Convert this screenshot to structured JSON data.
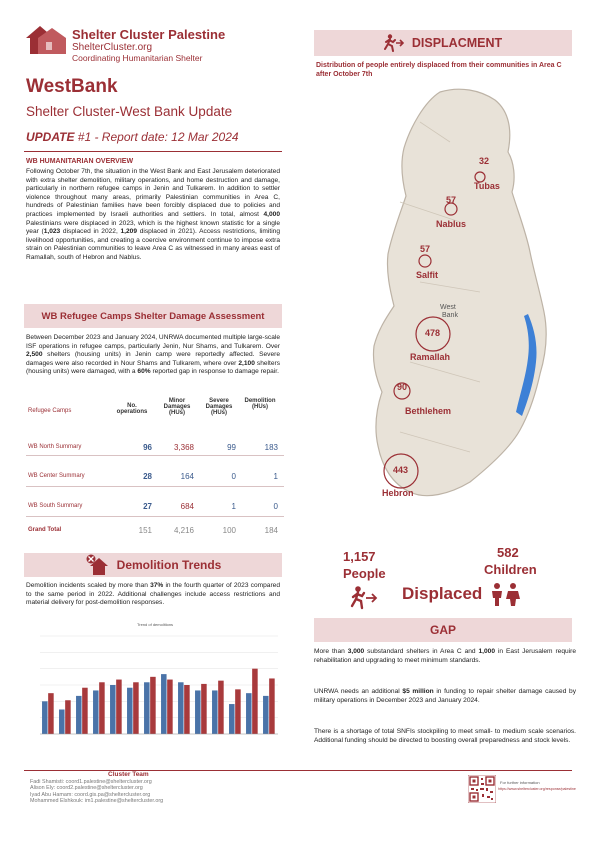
{
  "brand": {
    "name": "Shelter Cluster Palestine",
    "site": "ShelterCluster.org",
    "tagline": "Coordinating Humanitarian Shelter"
  },
  "header": {
    "region": "WestBank",
    "subtitle": "Shelter Cluster-West Bank Update",
    "update_label": "UPDATE",
    "update_meta": "#1 - Report date: 12 Mar 2024"
  },
  "overview": {
    "heading": "WB HUMANITARIAN OVERVIEW",
    "text_a": "Following October 7th, the situation in the West Bank and East Jerusalem deteriorated with extra shelter demolition, military operations, and home destruction and damage, particularly in northern refugee camps in Jenin and Tulkarem. In addition to settler violence throughout many areas, primarily Palestinian communities in Area C, hundreds of Palestinian families have been forcibly displaced due to policies and practices implemented by Israeli authorities and settlers. In total, almost ",
    "num_a": "4,000",
    "text_b": " Palestinians were displaced in 2023, which is the highest known statistic for a single year (",
    "num_b": "1,023",
    "text_c": " displaced in 2022, ",
    "num_c": "1,209",
    "text_d": " displaced in 2021). Access restrictions, limiting livelihood opportunities, and creating a coercive environment continue to impose extra strain on Palestinian communities to leave Area C as witnessed in many areas east of Ramallah, south of Hebron and Nablus."
  },
  "camps": {
    "heading": "WB Refugee Camps Shelter Damage Assessment",
    "text_a": "Between December 2023 and January 2024, UNRWA documented multiple large-scale ISF operations in refugee camps, particularly Jenin, Nur Shams, and Tulkarem. Over ",
    "num_a": "2,500",
    "text_b": " shelters (housing units) in Jenin camp were reportedly affected. Severe damages were also recorded in Nour Shams and Tulkarem, where over ",
    "num_b": "2,100",
    "text_c": " shelters (housing units) were damaged, with a ",
    "num_c": "60%",
    "text_d": " reported gap in response to damage repair.",
    "columns": [
      "Refugee Camps",
      "No. operations",
      "Minor Damages (HUs)",
      "Severe Damages (HUs)",
      "Demolition (HUs)"
    ],
    "rows": [
      {
        "name": "WB North Summary",
        "ops": "96",
        "minor": "3,368",
        "severe": "99",
        "demo": "183"
      },
      {
        "name": "WB Center Summary",
        "ops": "28",
        "minor": "164",
        "severe": "0",
        "demo": "1"
      },
      {
        "name": "WB South Summary",
        "ops": "27",
        "minor": "684",
        "severe": "1",
        "demo": "0"
      },
      {
        "name": "Grand Total",
        "ops": "151",
        "minor": "4,216",
        "severe": "100",
        "demo": "184"
      }
    ]
  },
  "demolition": {
    "heading": "Demolition Trends",
    "text_a": "Demolition incidents scaled by more than ",
    "num_a": "37%",
    "text_b": " in the fourth quarter of 2023 compared to the same period in 2022. Additional challenges include access restrictions and material delivery for post-demolition responses."
  },
  "chart_data": {
    "type": "bar",
    "title": "Trend of demolitions",
    "series": [
      {
        "color": "#4a73a8",
        "values": [
          60,
          45,
          70,
          80,
          90,
          85,
          95,
          110,
          95,
          80,
          80,
          55,
          75,
          70
        ]
      },
      {
        "color": "#a83a3c",
        "values": [
          75,
          62,
          85,
          95,
          100,
          95,
          105,
          100,
          90,
          92,
          98,
          82,
          120,
          102
        ]
      }
    ],
    "ylim": [
      0,
      180
    ]
  },
  "displacement": {
    "heading": "DISPLACMENT",
    "caption": "Distribution of people entirely displaced from their communities in Area C after October 7th",
    "points": [
      {
        "name": "Tubas",
        "value": "32"
      },
      {
        "name": "Nablus",
        "value": "57"
      },
      {
        "name": "Salfit",
        "value": "57"
      },
      {
        "name": "Ramallah",
        "value": "478"
      },
      {
        "name": "Bethlehem",
        "value": "90"
      },
      {
        "name": "Hebron",
        "value": "443"
      }
    ],
    "map_label_1": "West",
    "map_label_2": "Bank",
    "people_num": "1,157",
    "people_label": "People",
    "displaced_label": "Displaced",
    "children_num": "582",
    "children_label": "Children"
  },
  "gap": {
    "heading": "GAP",
    "p1_a": "More than ",
    "p1_n1": "3,000",
    "p1_b": " substandard shelters in Area C and ",
    "p1_n2": "1,000",
    "p1_c": " in East Jerusalem require rehabilitation and upgrading to meet minimum standards.",
    "p2_a": "UNRWA needs an additional ",
    "p2_n": "$5 million",
    "p2_b": " in funding to repair shelter damage caused by military operations in December 2023 and January 2024.",
    "p3": "There is a shortage of total SNFIs stockpiling to meet small- to medium scale scenarios. Additional funding should be directed to boosting overall preparedness and stock levels."
  },
  "footer": {
    "team_label": "Cluster Team",
    "contacts": [
      "Fadi Shamisti: coord1.palestine@sheltercluster.org",
      "Alison Ely: coord2.palestine@sheltercluster.org",
      "Iyad Abu Hamam: coord.gis.pa@sheltercluster.org",
      "Mohammed Elshkouk: im1.palestine@sheltercluster.org"
    ],
    "link_label": "For further information",
    "link_url": "https://www.sheltercluster.org/response/palestine"
  }
}
